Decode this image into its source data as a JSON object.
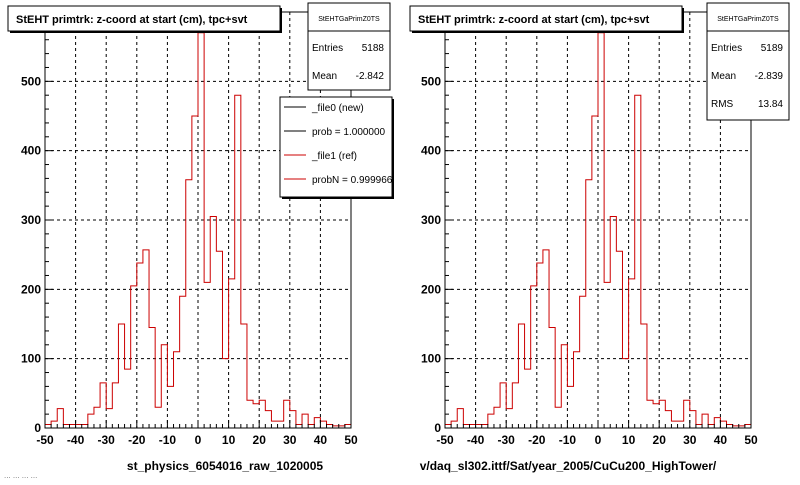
{
  "footer": {
    "left_caption": "st_physics_6054016_raw_1020005",
    "right_caption": "v/daq_sl302.ittf/Sat/year_2005/CuCu200_HighTower/",
    "corner_fragment": "... ... ... ..."
  },
  "chart_data": [
    {
      "type": "bar",
      "title": "StEHT primtrk: z-coord at start (cm), tpc+svt",
      "stats": {
        "name": "StEHTGaPrimZ0TS",
        "rows": [
          {
            "label": "Entries",
            "value": "5188"
          },
          {
            "label": "Mean",
            "value": "-2.842"
          }
        ]
      },
      "legend": {
        "placement": "top-right",
        "entries": [
          {
            "label": "_file0 (new)",
            "color": "#000000"
          },
          {
            "label": "prob = 1.000000",
            "color": "#000000"
          },
          {
            "label": "_file1 (ref)",
            "color": "#cc0000"
          },
          {
            "label": "probN = 0.999966",
            "color": "#cc0000"
          }
        ]
      },
      "xlim": [
        -50,
        50
      ],
      "ylim": [
        0,
        600
      ],
      "xticks": [
        -50,
        -40,
        -30,
        -20,
        -10,
        0,
        10,
        20,
        30,
        40,
        50
      ],
      "yticks": [
        0,
        100,
        200,
        300,
        400,
        500
      ],
      "grid": true,
      "bin_width": 2,
      "series": [
        {
          "color": "#cc0000",
          "values": [
            5,
            10,
            28,
            5,
            5,
            5,
            5,
            20,
            30,
            65,
            28,
            65,
            150,
            85,
            205,
            238,
            257,
            145,
            30,
            120,
            60,
            110,
            190,
            358,
            450,
            570,
            210,
            305,
            255,
            100,
            215,
            480,
            150,
            40,
            35,
            40,
            25,
            10,
            10,
            40,
            25,
            5,
            20,
            5,
            15,
            10,
            5,
            3,
            3,
            5
          ]
        }
      ]
    },
    {
      "type": "bar",
      "title": "StEHT primtrk: z-coord at start (cm), tpc+svt",
      "stats": {
        "name": "StEHTGaPrimZ0TS",
        "rows": [
          {
            "label": "Entries",
            "value": "5189"
          },
          {
            "label": "Mean",
            "value": "-2.839"
          },
          {
            "label": "RMS",
            "value": "13.84"
          }
        ]
      },
      "xlim": [
        -50,
        50
      ],
      "ylim": [
        0,
        600
      ],
      "xticks": [
        -50,
        -40,
        -30,
        -20,
        -10,
        0,
        10,
        20,
        30,
        40,
        50
      ],
      "yticks": [
        0,
        100,
        200,
        300,
        400,
        500
      ],
      "grid": true,
      "bin_width": 2,
      "series": [
        {
          "color": "#cc0000",
          "values": [
            5,
            10,
            28,
            5,
            5,
            5,
            5,
            20,
            30,
            65,
            28,
            65,
            150,
            85,
            205,
            238,
            257,
            145,
            30,
            120,
            60,
            110,
            190,
            358,
            450,
            570,
            210,
            305,
            255,
            100,
            215,
            480,
            150,
            40,
            35,
            40,
            25,
            10,
            10,
            40,
            25,
            5,
            20,
            5,
            15,
            10,
            5,
            3,
            3,
            5
          ]
        }
      ]
    }
  ]
}
